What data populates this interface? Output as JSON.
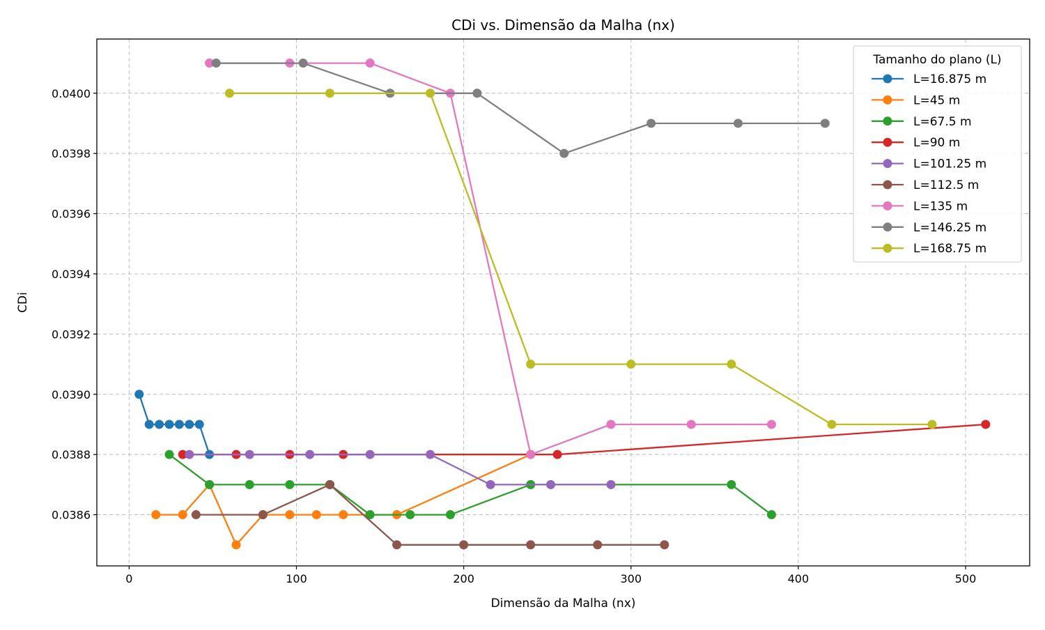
{
  "chart_data": {
    "type": "line",
    "title": "CDi vs. Dimensão da Malha (nx)",
    "xlabel": "Dimensão da Malha (nx)",
    "ylabel": "CDi",
    "xlim": [
      -19.3,
      538.3
    ],
    "ylim": [
      0.03843,
      0.04018
    ],
    "x_ticks": [
      0,
      100,
      200,
      300,
      400,
      500
    ],
    "x_tick_labels": [
      "0",
      "100",
      "200",
      "300",
      "400",
      "500"
    ],
    "y_ticks": [
      0.0386,
      0.0388,
      0.039,
      0.0392,
      0.0394,
      0.0396,
      0.0398,
      0.04
    ],
    "y_tick_labels": [
      "0.0386",
      "0.0388",
      "0.0390",
      "0.0392",
      "0.0394",
      "0.0396",
      "0.0398",
      "0.0400"
    ],
    "grid": true,
    "legend": {
      "title": "Tamanho do plano (L)",
      "placement": "top-right"
    },
    "series": [
      {
        "name": "L=16.875 m",
        "color": "#1f77b4",
        "x": [
          6,
          12,
          18,
          24,
          30,
          36,
          42,
          48
        ],
        "y": [
          0.039,
          0.0389,
          0.0389,
          0.0389,
          0.0389,
          0.0389,
          0.0389,
          0.0388
        ]
      },
      {
        "name": "L=45 m",
        "color": "#ff7f0e",
        "x": [
          16,
          32,
          48,
          64,
          80,
          96,
          112,
          128,
          160,
          240
        ],
        "y": [
          0.0386,
          0.0386,
          0.0387,
          0.0385,
          0.0386,
          0.0386,
          0.0386,
          0.0386,
          0.0386,
          0.0388
        ]
      },
      {
        "name": "L=67.5 m",
        "color": "#2ca02c",
        "x": [
          24,
          48,
          72,
          96,
          120,
          144,
          168,
          192,
          240,
          360,
          384
        ],
        "y": [
          0.0388,
          0.0387,
          0.0387,
          0.0387,
          0.0387,
          0.0386,
          0.0386,
          0.0386,
          0.0387,
          0.0387,
          0.0386
        ]
      },
      {
        "name": "L=90 m",
        "color": "#d62728",
        "x": [
          32,
          64,
          96,
          128,
          256,
          512
        ],
        "y": [
          0.0388,
          0.0388,
          0.0388,
          0.0388,
          0.0388,
          0.0389
        ]
      },
      {
        "name": "L=101.25 m",
        "color": "#9467bd",
        "x": [
          36,
          72,
          108,
          144,
          180,
          216,
          252,
          288
        ],
        "y": [
          0.0388,
          0.0388,
          0.0388,
          0.0388,
          0.0388,
          0.0387,
          0.0387,
          0.0387
        ]
      },
      {
        "name": "L=112.5 m",
        "color": "#8c564b",
        "x": [
          40,
          80,
          120,
          160,
          200,
          240,
          280,
          320
        ],
        "y": [
          0.0386,
          0.0386,
          0.0387,
          0.0385,
          0.0385,
          0.0385,
          0.0385,
          0.0385
        ]
      },
      {
        "name": "L=135 m",
        "color": "#e377c2",
        "x": [
          48,
          96,
          144,
          192,
          240,
          288,
          336,
          384
        ],
        "y": [
          0.0401,
          0.0401,
          0.0401,
          0.04,
          0.0388,
          0.0389,
          0.0389,
          0.0389
        ]
      },
      {
        "name": "L=146.25 m",
        "color": "#7f7f7f",
        "x": [
          52,
          104,
          156,
          208,
          260,
          312,
          364,
          416
        ],
        "y": [
          0.0401,
          0.0401,
          0.04,
          0.04,
          0.0398,
          0.0399,
          0.0399,
          0.0399
        ]
      },
      {
        "name": "L=168.75 m",
        "color": "#bcbd22",
        "x": [
          60,
          120,
          180,
          240,
          300,
          360,
          420,
          480
        ],
        "y": [
          0.04,
          0.04,
          0.04,
          0.0391,
          0.0391,
          0.0391,
          0.0389,
          0.0389
        ]
      }
    ]
  }
}
